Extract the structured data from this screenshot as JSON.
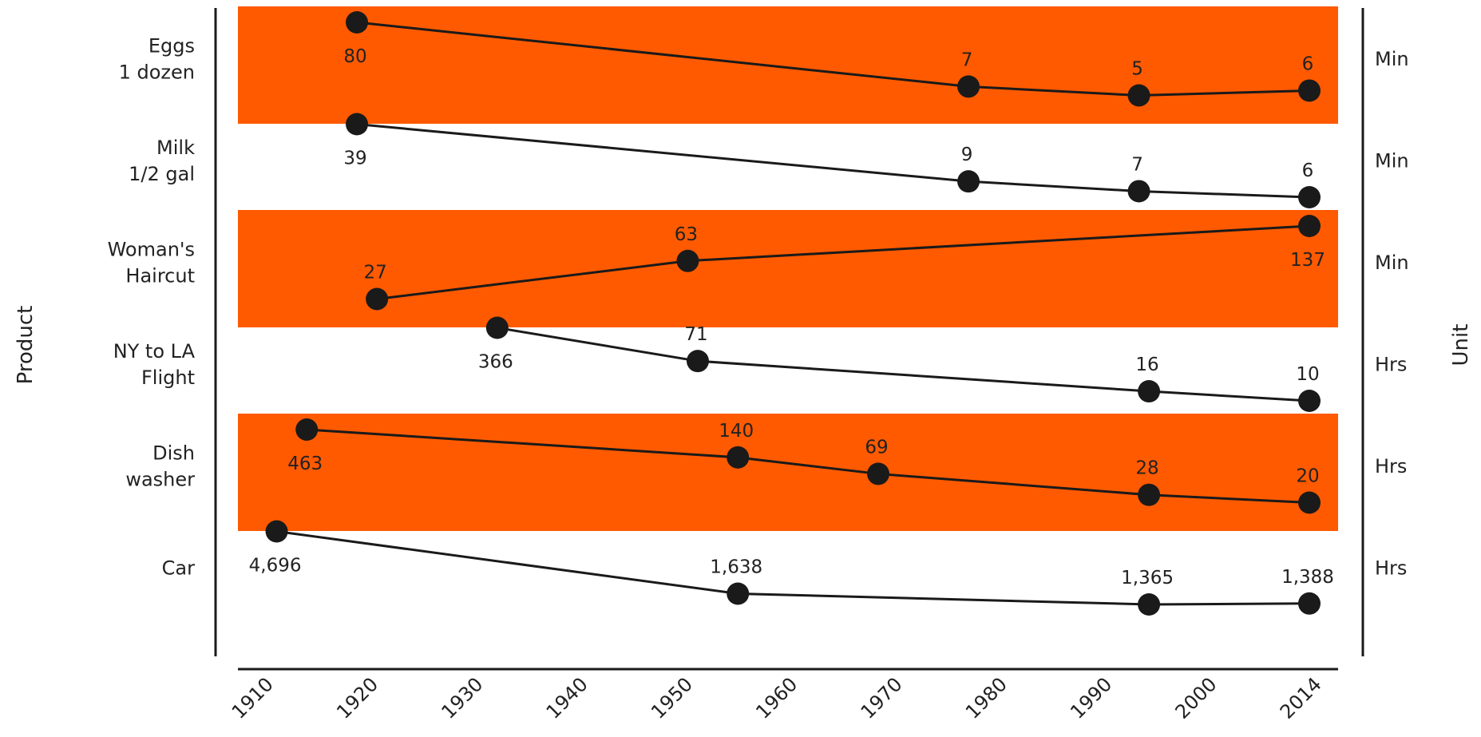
{
  "chart_data": {
    "type": "line",
    "ylabel": "Product",
    "y2label": "Unit",
    "x_ticks": [
      "1910",
      "1920",
      "1930",
      "1940",
      "1950",
      "1960",
      "1970",
      "1980",
      "1990",
      "2000",
      "2014"
    ],
    "band_color": "#FF5A00",
    "line_color": "#1a1a1a",
    "series": [
      {
        "name_lines": [
          "Eggs",
          "1 dozen"
        ],
        "unit": "Min",
        "banded": true,
        "points": [
          {
            "x": "1919",
            "y": 80,
            "label": "80",
            "pos": "below"
          },
          {
            "x": "1980",
            "y": 7,
            "label": "7",
            "pos": "above"
          },
          {
            "x": "1997",
            "y": 5,
            "label": "5",
            "pos": "above"
          },
          {
            "x": "2014",
            "y": 6,
            "label": "6",
            "pos": "above"
          }
        ]
      },
      {
        "name_lines": [
          "Milk",
          "1/2 gal"
        ],
        "unit": "Min",
        "banded": false,
        "points": [
          {
            "x": "1919",
            "y": 39,
            "label": "39",
            "pos": "below"
          },
          {
            "x": "1980",
            "y": 9,
            "label": "9",
            "pos": "above"
          },
          {
            "x": "1997",
            "y": 7,
            "label": "7",
            "pos": "above"
          },
          {
            "x": "2014",
            "y": 6,
            "label": "6",
            "pos": "above"
          }
        ]
      },
      {
        "name_lines": [
          "Woman's",
          "Haircut"
        ],
        "unit": "Min",
        "banded": true,
        "points": [
          {
            "x": "1921",
            "y": 27,
            "label": "27",
            "pos": "above"
          },
          {
            "x": "1952",
            "y": 63,
            "label": "63",
            "pos": "above"
          },
          {
            "x": "2014",
            "y": 137,
            "label": "137",
            "pos": "below"
          }
        ]
      },
      {
        "name_lines": [
          "NY to LA",
          "Flight"
        ],
        "unit": "Hrs",
        "banded": false,
        "points": [
          {
            "x": "1933",
            "y": 366,
            "label": "366",
            "pos": "below"
          },
          {
            "x": "1953",
            "y": 71,
            "label": "71",
            "pos": "above"
          },
          {
            "x": "1998",
            "y": 16,
            "label": "16",
            "pos": "above"
          },
          {
            "x": "2014",
            "y": 10,
            "label": "10",
            "pos": "above"
          }
        ]
      },
      {
        "name_lines": [
          "Dish",
          "washer"
        ],
        "unit": "Hrs",
        "banded": true,
        "points": [
          {
            "x": "1914",
            "y": 463,
            "label": "463",
            "pos": "below"
          },
          {
            "x": "1957",
            "y": 140,
            "label": "140",
            "pos": "above"
          },
          {
            "x": "1971",
            "y": 69,
            "label": "69",
            "pos": "above"
          },
          {
            "x": "1998",
            "y": 28,
            "label": "28",
            "pos": "above"
          },
          {
            "x": "2014",
            "y": 20,
            "label": "20",
            "pos": "above"
          }
        ]
      },
      {
        "name_lines": [
          "Car"
        ],
        "unit": "Hrs",
        "banded": false,
        "points": [
          {
            "x": "1911",
            "y": 4696,
            "label": "4,696",
            "pos": "below"
          },
          {
            "x": "1957",
            "y": 1638,
            "label": "1,638",
            "pos": "above"
          },
          {
            "x": "1998",
            "y": 1365,
            "label": "1,365",
            "pos": "above"
          },
          {
            "x": "2014",
            "y": 1388,
            "label": "1,388",
            "pos": "above"
          }
        ]
      }
    ]
  }
}
